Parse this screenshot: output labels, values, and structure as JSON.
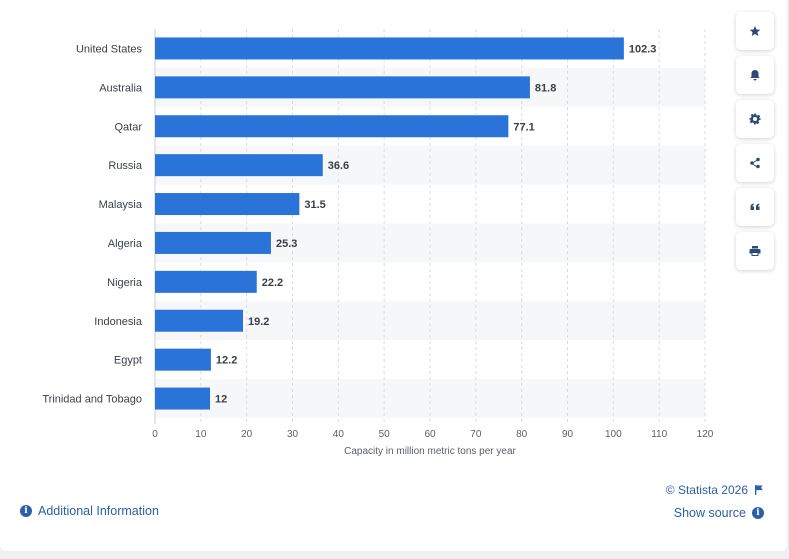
{
  "chart_data": {
    "type": "bar",
    "orientation": "horizontal",
    "categories": [
      "United States",
      "Australia",
      "Qatar",
      "Russia",
      "Malaysia",
      "Algeria",
      "Nigeria",
      "Indonesia",
      "Egypt",
      "Trinidad and Tobago"
    ],
    "values": [
      102.3,
      81.8,
      77.1,
      36.6,
      31.5,
      25.3,
      22.2,
      19.2,
      12.2,
      12
    ],
    "value_labels": [
      "102.3",
      "81.8",
      "77.1",
      "36.6",
      "31.5",
      "25.3",
      "22.2",
      "19.2",
      "12.2",
      "12"
    ],
    "xlabel": "Capacity in million metric tons per year",
    "xlim": [
      0,
      120
    ],
    "xticks": [
      0,
      10,
      20,
      30,
      40,
      50,
      60,
      70,
      80,
      90,
      100,
      110,
      120
    ],
    "bar_color": "#2a73d9",
    "grid": true
  },
  "toolbar": [
    {
      "name": "bookmark-button",
      "icon": "star-icon"
    },
    {
      "name": "notification-button",
      "icon": "bell-icon"
    },
    {
      "name": "settings-button",
      "icon": "gear-icon"
    },
    {
      "name": "share-button",
      "icon": "share-icon"
    },
    {
      "name": "cite-button",
      "icon": "quote-icon"
    },
    {
      "name": "print-button",
      "icon": "print-icon"
    }
  ],
  "footer": {
    "additional_info": "Additional Information",
    "copyright": "© Statista 2026",
    "show_source": "Show source"
  },
  "colors": {
    "link": "#2b5fa8",
    "bar": "#2a73d9"
  }
}
